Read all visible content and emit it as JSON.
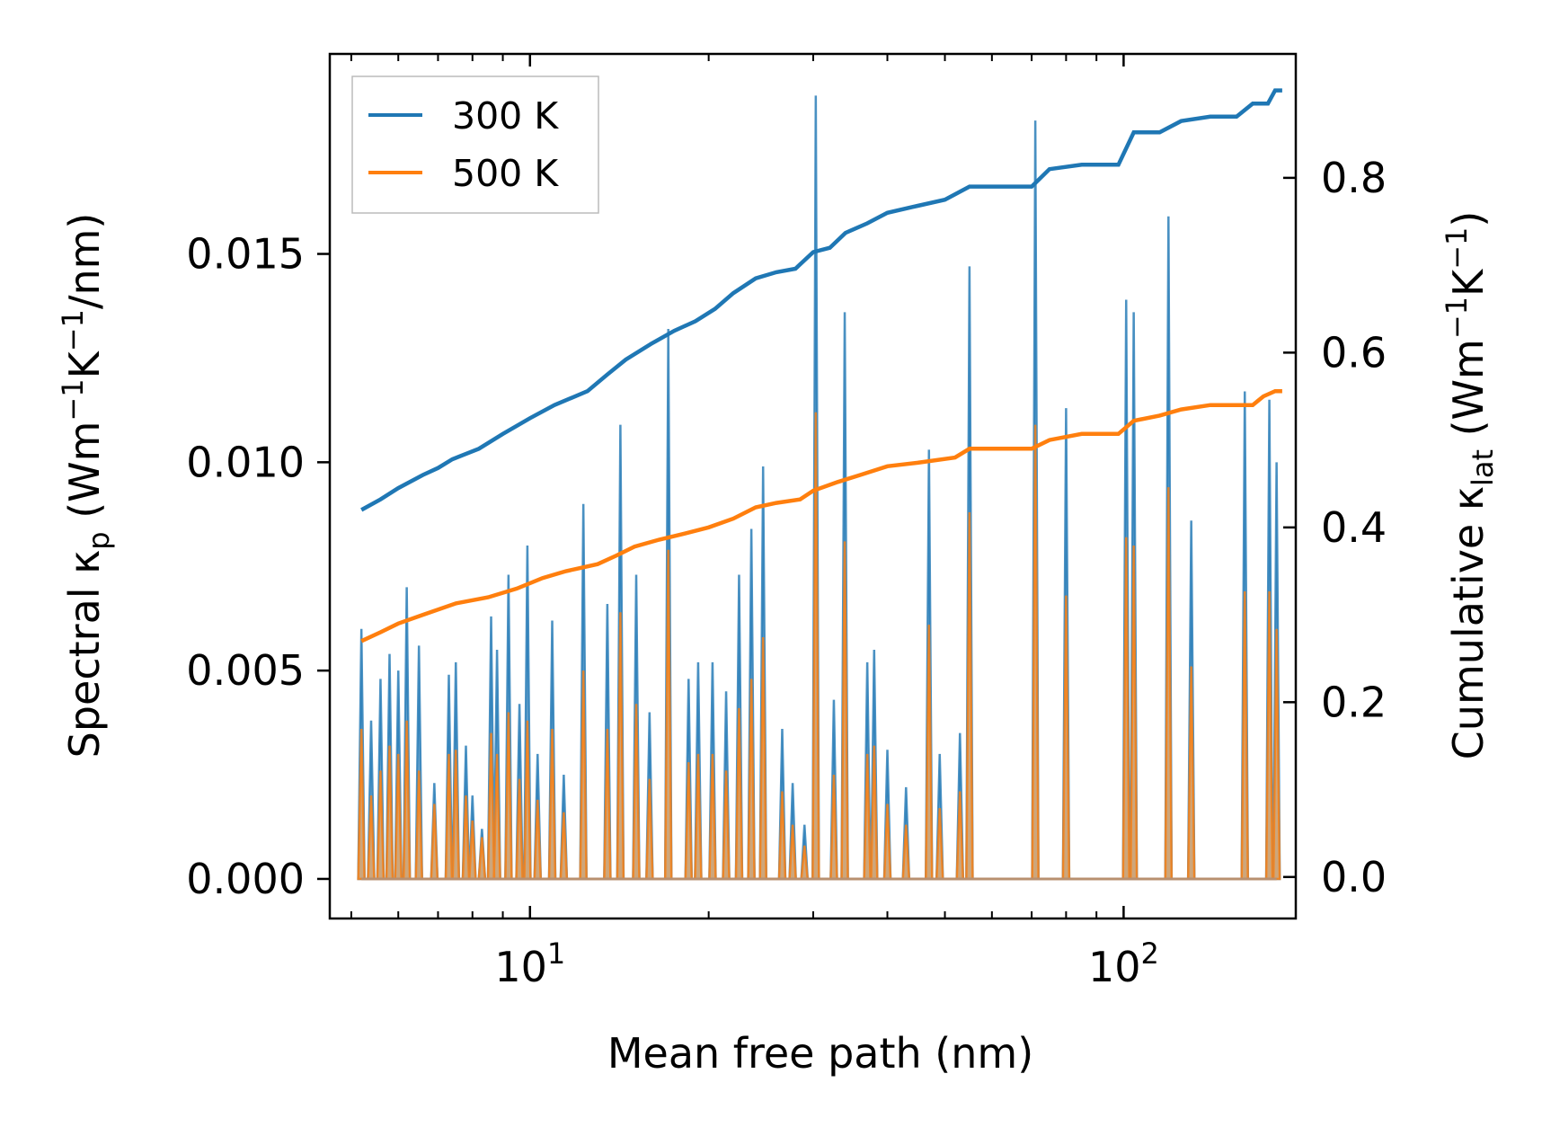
{
  "chart_data": {
    "type": "line",
    "xscale": "log",
    "xlim": [
      4.6,
      195
    ],
    "xlabel": "Mean free path (nm)",
    "x_major_ticks": [
      {
        "value": 10,
        "base": "10",
        "exp": "1"
      },
      {
        "value": 100,
        "base": "10",
        "exp": "2"
      }
    ],
    "y_left": {
      "label_parts": {
        "pre": "Spectral κ",
        "sub": "p",
        "post1": " (Wm",
        "sup1": "−1",
        "post2": "K",
        "sup2": "−1",
        "post3": "/nm)"
      },
      "ylim": [
        -0.00095,
        0.0198
      ],
      "ticks": [
        0.0,
        0.005,
        0.01,
        0.015
      ],
      "tick_labels": [
        "0.000",
        "0.005",
        "0.010",
        "0.015"
      ]
    },
    "y_right": {
      "label_parts": {
        "pre": "Cumulative κ",
        "sub": "lat",
        "post1": " (Wm",
        "sup1": "−1",
        "post2": "K",
        "sup2": "−1",
        "post3": ")"
      },
      "ylim": [
        -0.0475,
        0.9418
      ],
      "ticks": [
        0.0,
        0.2,
        0.4,
        0.6,
        0.8
      ],
      "tick_labels": [
        "0.0",
        "0.2",
        "0.4",
        "0.6",
        "0.8"
      ]
    },
    "legend": {
      "position": "top-left",
      "entries": [
        "300 K",
        "500 K"
      ]
    },
    "series": [
      {
        "name": "300 K",
        "color": "#1f77b4",
        "fill_color": "#1f77b4",
        "spectral_peaks": [
          [
            5.2,
            0.006
          ],
          [
            5.4,
            0.0038
          ],
          [
            5.6,
            0.0048
          ],
          [
            5.8,
            0.0054
          ],
          [
            6.0,
            0.005
          ],
          [
            6.2,
            0.007
          ],
          [
            6.5,
            0.0056
          ],
          [
            6.9,
            0.0023
          ],
          [
            7.3,
            0.0049
          ],
          [
            7.5,
            0.0052
          ],
          [
            7.8,
            0.0032
          ],
          [
            8.0,
            0.002
          ],
          [
            8.3,
            0.0012
          ],
          [
            8.6,
            0.0063
          ],
          [
            8.8,
            0.0055
          ],
          [
            9.2,
            0.0073
          ],
          [
            9.6,
            0.0042
          ],
          [
            9.9,
            0.008
          ],
          [
            10.3,
            0.003
          ],
          [
            10.9,
            0.0062
          ],
          [
            11.4,
            0.0025
          ],
          [
            12.3,
            0.009
          ],
          [
            13.5,
            0.0066
          ],
          [
            14.2,
            0.0109
          ],
          [
            15.1,
            0.0073
          ],
          [
            15.9,
            0.004
          ],
          [
            17.1,
            0.0132
          ],
          [
            18.5,
            0.0048
          ],
          [
            19.2,
            0.0052
          ],
          [
            20.3,
            0.0052
          ],
          [
            21.4,
            0.0045
          ],
          [
            22.5,
            0.0073
          ],
          [
            23.6,
            0.0084
          ],
          [
            24.7,
            0.0099
          ],
          [
            26.6,
            0.0036
          ],
          [
            27.7,
            0.0023
          ],
          [
            29.0,
            0.0013
          ],
          [
            30.3,
            0.0188
          ],
          [
            32.5,
            0.0043
          ],
          [
            33.9,
            0.0136
          ],
          [
            37.0,
            0.0052
          ],
          [
            38.0,
            0.0055
          ],
          [
            40.0,
            0.0031
          ],
          [
            43.0,
            0.0022
          ],
          [
            47.0,
            0.0103
          ],
          [
            49.0,
            0.003
          ],
          [
            53.0,
            0.0035
          ],
          [
            55.0,
            0.0147
          ],
          [
            71.0,
            0.0182
          ],
          [
            80.0,
            0.0113
          ],
          [
            101.0,
            0.0139
          ],
          [
            104.0,
            0.0136
          ],
          [
            119.0,
            0.0159
          ],
          [
            130.0,
            0.0086
          ],
          [
            160.0,
            0.0117
          ],
          [
            176.0,
            0.0115
          ],
          [
            181.0,
            0.01
          ]
        ],
        "cumulative": [
          [
            5.2,
            0.42
          ],
          [
            5.6,
            0.432
          ],
          [
            6.0,
            0.445
          ],
          [
            6.6,
            0.46
          ],
          [
            7.0,
            0.468
          ],
          [
            7.4,
            0.478
          ],
          [
            8.2,
            0.49
          ],
          [
            9.0,
            0.507
          ],
          [
            10.0,
            0.525
          ],
          [
            11.0,
            0.54
          ],
          [
            12.5,
            0.556
          ],
          [
            13.5,
            0.575
          ],
          [
            14.5,
            0.592
          ],
          [
            16.0,
            0.61
          ],
          [
            17.5,
            0.625
          ],
          [
            19.0,
            0.636
          ],
          [
            20.5,
            0.65
          ],
          [
            22.0,
            0.668
          ],
          [
            24.0,
            0.685
          ],
          [
            26.0,
            0.692
          ],
          [
            28.0,
            0.696
          ],
          [
            30.0,
            0.715
          ],
          [
            32.0,
            0.72
          ],
          [
            34.0,
            0.737
          ],
          [
            37.0,
            0.748
          ],
          [
            40.0,
            0.76
          ],
          [
            45.0,
            0.768
          ],
          [
            50.0,
            0.775
          ],
          [
            55.0,
            0.79
          ],
          [
            70.0,
            0.79
          ],
          [
            75.0,
            0.81
          ],
          [
            85.0,
            0.815
          ],
          [
            98.0,
            0.815
          ],
          [
            104.0,
            0.852
          ],
          [
            115.0,
            0.852
          ],
          [
            125.0,
            0.865
          ],
          [
            140.0,
            0.87
          ],
          [
            155.0,
            0.87
          ],
          [
            165.0,
            0.885
          ],
          [
            175.0,
            0.885
          ],
          [
            180.0,
            0.9
          ],
          [
            185.0,
            0.9
          ]
        ]
      },
      {
        "name": "500 K",
        "color": "#ff7f0e",
        "fill_color": "#d9a36b",
        "spectral_peaks": [
          [
            5.2,
            0.0036
          ],
          [
            5.4,
            0.002
          ],
          [
            5.6,
            0.0026
          ],
          [
            5.8,
            0.0032
          ],
          [
            6.0,
            0.003
          ],
          [
            6.2,
            0.0038
          ],
          [
            6.5,
            0.0026
          ],
          [
            6.9,
            0.0018
          ],
          [
            7.3,
            0.003
          ],
          [
            7.5,
            0.0031
          ],
          [
            7.8,
            0.002
          ],
          [
            8.0,
            0.0014
          ],
          [
            8.3,
            0.001
          ],
          [
            8.6,
            0.0035
          ],
          [
            8.8,
            0.003
          ],
          [
            9.2,
            0.004
          ],
          [
            9.6,
            0.0024
          ],
          [
            9.9,
            0.0038
          ],
          [
            10.3,
            0.0019
          ],
          [
            10.9,
            0.0036
          ],
          [
            11.4,
            0.0016
          ],
          [
            12.3,
            0.005
          ],
          [
            13.5,
            0.0036
          ],
          [
            14.2,
            0.0064
          ],
          [
            15.1,
            0.0042
          ],
          [
            15.9,
            0.0024
          ],
          [
            17.1,
            0.0079
          ],
          [
            18.5,
            0.0028
          ],
          [
            19.2,
            0.003
          ],
          [
            20.3,
            0.003
          ],
          [
            21.4,
            0.0026
          ],
          [
            22.5,
            0.0041
          ],
          [
            23.6,
            0.0048
          ],
          [
            24.7,
            0.0058
          ],
          [
            26.6,
            0.0021
          ],
          [
            27.7,
            0.0013
          ],
          [
            29.0,
            0.0008
          ],
          [
            30.3,
            0.0112
          ],
          [
            32.5,
            0.0025
          ],
          [
            33.9,
            0.0081
          ],
          [
            37.0,
            0.003
          ],
          [
            38.0,
            0.0032
          ],
          [
            40.0,
            0.0018
          ],
          [
            43.0,
            0.0013
          ],
          [
            47.0,
            0.0061
          ],
          [
            49.0,
            0.0017
          ],
          [
            53.0,
            0.0021
          ],
          [
            55.0,
            0.0088
          ],
          [
            71.0,
            0.0109
          ],
          [
            80.0,
            0.0068
          ],
          [
            101.0,
            0.0082
          ],
          [
            104.0,
            0.008
          ],
          [
            119.0,
            0.0094
          ],
          [
            130.0,
            0.0051
          ],
          [
            160.0,
            0.0069
          ],
          [
            176.0,
            0.0069
          ],
          [
            181.0,
            0.006
          ]
        ],
        "cumulative": [
          [
            5.2,
            0.27
          ],
          [
            5.6,
            0.28
          ],
          [
            6.0,
            0.29
          ],
          [
            6.6,
            0.3
          ],
          [
            7.5,
            0.313
          ],
          [
            8.5,
            0.32
          ],
          [
            9.5,
            0.33
          ],
          [
            10.5,
            0.342
          ],
          [
            11.5,
            0.35
          ],
          [
            13.0,
            0.358
          ],
          [
            14.0,
            0.368
          ],
          [
            15.0,
            0.378
          ],
          [
            16.5,
            0.386
          ],
          [
            18.0,
            0.392
          ],
          [
            20.0,
            0.4
          ],
          [
            22.0,
            0.41
          ],
          [
            24.0,
            0.423
          ],
          [
            26.0,
            0.428
          ],
          [
            28.5,
            0.432
          ],
          [
            30.0,
            0.442
          ],
          [
            33.0,
            0.452
          ],
          [
            36.0,
            0.46
          ],
          [
            40.0,
            0.47
          ],
          [
            45.0,
            0.474
          ],
          [
            52.0,
            0.48
          ],
          [
            55.0,
            0.49
          ],
          [
            70.0,
            0.49
          ],
          [
            75.0,
            0.5
          ],
          [
            85.0,
            0.507
          ],
          [
            98.0,
            0.507
          ],
          [
            104.0,
            0.522
          ],
          [
            115.0,
            0.528
          ],
          [
            125.0,
            0.535
          ],
          [
            140.0,
            0.54
          ],
          [
            165.0,
            0.54
          ],
          [
            172.0,
            0.55
          ],
          [
            180.0,
            0.556
          ],
          [
            185.0,
            0.556
          ]
        ]
      }
    ]
  }
}
